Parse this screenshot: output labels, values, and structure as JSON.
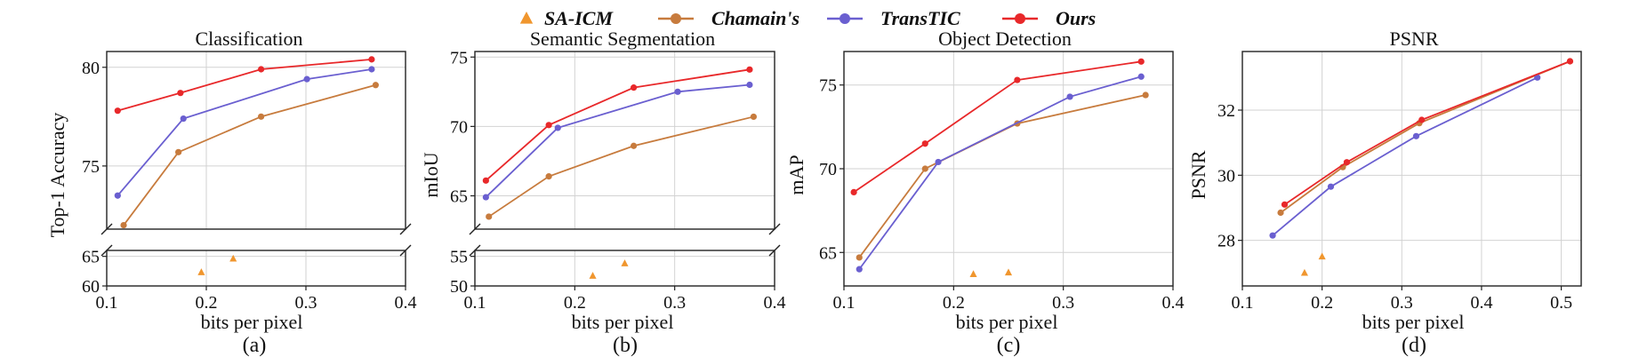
{
  "legend": [
    {
      "name": "SA-ICM",
      "color": "#f0962e",
      "marker": "triangle"
    },
    {
      "name": "Chamain's",
      "color": "#c77b3d",
      "marker": "circle"
    },
    {
      "name": "TransTIC",
      "color": "#6a5fd0",
      "marker": "circle"
    },
    {
      "name": "Ours",
      "color": "#e8282a",
      "marker": "circle"
    }
  ],
  "chart_data": [
    {
      "type": "line",
      "panel": "(a)",
      "title": "Classification",
      "xlabel": "bits per pixel",
      "ylabel": "Top-1 Accuracy",
      "xlim": [
        0.1,
        0.4
      ],
      "xticks": [
        0.1,
        0.2,
        0.3,
        0.4
      ],
      "broken_axis": true,
      "ylim_upper": [
        71.8,
        80.8
      ],
      "yticks_upper": [
        75,
        80
      ],
      "ylim_lower": [
        60,
        66
      ],
      "yticks_lower": [
        60,
        65
      ],
      "series": [
        {
          "name": "Ours",
          "x": [
            0.111,
            0.174,
            0.255,
            0.366
          ],
          "y": [
            77.8,
            78.7,
            79.9,
            80.4
          ]
        },
        {
          "name": "TransTIC",
          "x": [
            0.111,
            0.177,
            0.301,
            0.366
          ],
          "y": [
            73.5,
            77.4,
            79.4,
            79.9
          ]
        },
        {
          "name": "Chamain's",
          "x": [
            0.117,
            0.172,
            0.255,
            0.37
          ],
          "y": [
            72.0,
            75.7,
            77.5,
            79.1
          ]
        }
      ],
      "scatter": [
        {
          "name": "SA-ICM",
          "x": [
            0.195,
            0.227
          ],
          "y": [
            62.3,
            64.6
          ]
        }
      ]
    },
    {
      "type": "line",
      "panel": "(b)",
      "title": "Semantic Segmentation",
      "xlabel": "bits per pixel",
      "ylabel": "mIoU",
      "xlim": [
        0.1,
        0.4
      ],
      "xticks": [
        0.1,
        0.2,
        0.3,
        0.4
      ],
      "broken_axis": true,
      "ylim_upper": [
        62.6,
        75.4
      ],
      "yticks_upper": [
        65,
        70,
        75
      ],
      "ylim_lower": [
        50,
        56
      ],
      "yticks_lower": [
        50,
        55
      ],
      "series": [
        {
          "name": "Ours",
          "x": [
            0.111,
            0.174,
            0.259,
            0.375
          ],
          "y": [
            66.1,
            70.1,
            72.8,
            74.1
          ]
        },
        {
          "name": "TransTIC",
          "x": [
            0.111,
            0.183,
            0.303,
            0.375
          ],
          "y": [
            64.9,
            69.9,
            72.5,
            73.0
          ]
        },
        {
          "name": "Chamain's",
          "x": [
            0.114,
            0.174,
            0.259,
            0.379
          ],
          "y": [
            63.5,
            66.4,
            68.6,
            70.7
          ]
        }
      ],
      "scatter": [
        {
          "name": "SA-ICM",
          "x": [
            0.218,
            0.25
          ],
          "y": [
            51.7,
            53.8
          ]
        }
      ]
    },
    {
      "type": "line",
      "panel": "(c)",
      "title": "Object Detection",
      "xlabel": "bits per pixel",
      "ylabel": "mAP",
      "xlim": [
        0.1,
        0.4
      ],
      "xticks": [
        0.1,
        0.2,
        0.3,
        0.4
      ],
      "ylim": [
        63.0,
        77.0
      ],
      "yticks": [
        65,
        70,
        75
      ],
      "series": [
        {
          "name": "Ours",
          "x": [
            0.109,
            0.174,
            0.258,
            0.371
          ],
          "y": [
            68.6,
            71.5,
            75.3,
            76.4
          ]
        },
        {
          "name": "TransTIC",
          "x": [
            0.114,
            0.186,
            0.306,
            0.371
          ],
          "y": [
            64.0,
            70.4,
            74.3,
            75.5
          ]
        },
        {
          "name": "Chamain's",
          "x": [
            0.114,
            0.174,
            0.258,
            0.375
          ],
          "y": [
            64.7,
            70.0,
            72.7,
            74.4
          ]
        }
      ],
      "scatter": [
        {
          "name": "SA-ICM",
          "x": [
            0.218,
            0.25
          ],
          "y": [
            63.7,
            63.8
          ]
        }
      ]
    },
    {
      "type": "line",
      "panel": "(d)",
      "title": "PSNR",
      "xlabel": "bits per pixel",
      "ylabel": "PSNR",
      "xlim": [
        0.1,
        0.525
      ],
      "xticks": [
        0.1,
        0.2,
        0.3,
        0.4,
        0.5
      ],
      "ylim": [
        26.6,
        33.8
      ],
      "yticks": [
        28,
        30,
        32
      ],
      "series": [
        {
          "name": "Ours",
          "x": [
            0.153,
            0.231,
            0.325,
            0.511
          ],
          "y": [
            29.1,
            30.4,
            31.7,
            33.5
          ]
        },
        {
          "name": "TransTIC",
          "x": [
            0.138,
            0.211,
            0.318,
            0.47
          ],
          "y": [
            28.15,
            29.65,
            31.2,
            33.0
          ]
        },
        {
          "name": "Chamain's",
          "x": [
            0.148,
            0.226,
            0.322,
            0.511
          ],
          "y": [
            28.85,
            30.25,
            31.6,
            33.5
          ]
        }
      ],
      "scatter": [
        {
          "name": "SA-ICM",
          "x": [
            0.178,
            0.2
          ],
          "y": [
            27.0,
            27.5
          ]
        }
      ]
    }
  ]
}
